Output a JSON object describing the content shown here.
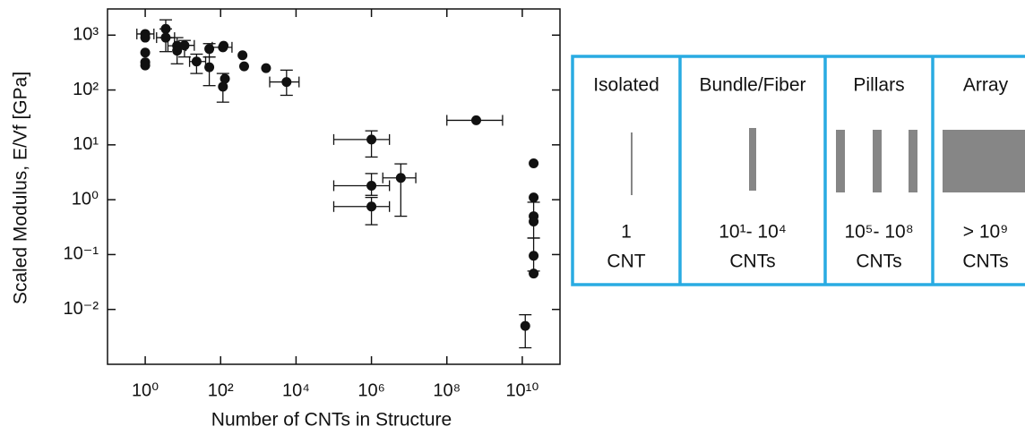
{
  "chart_data": {
    "type": "scatter",
    "xlabel": "Number of CNTs in Structure",
    "ylabel": "Scaled Modulus, E/Vf [GPa]",
    "log_x": true,
    "log_y": true,
    "color": "#111111",
    "xlim": [
      0.1,
      100000000000
    ],
    "ylim": [
      0.001,
      3000
    ],
    "xticks": [
      {
        "value": 1,
        "label": "10⁰"
      },
      {
        "value": 100,
        "label": "10²"
      },
      {
        "value": 10000,
        "label": "10⁴"
      },
      {
        "value": 1000000,
        "label": "10⁶"
      },
      {
        "value": 100000000,
        "label": "10⁸"
      },
      {
        "value": 10000000000,
        "label": "10¹⁰"
      }
    ],
    "yticks": [
      {
        "value": 0.01,
        "label": "10⁻²"
      },
      {
        "value": 0.1,
        "label": "10⁻¹"
      },
      {
        "value": 1,
        "label": "10⁰"
      },
      {
        "value": 10,
        "label": "10¹"
      },
      {
        "value": 100,
        "label": "10²"
      },
      {
        "value": 1000,
        "label": "10³"
      }
    ],
    "x": [
      1,
      1,
      1,
      1,
      1,
      3.5,
      3.5,
      7,
      7,
      11,
      23,
      50,
      50,
      115,
      120,
      115,
      130,
      380,
      420,
      1600,
      5600,
      1000000,
      1000000,
      1000000,
      6000000,
      600000000,
      12000000000,
      20000000000,
      20000000000,
      20000000000,
      20000000000,
      20000000000,
      20000000000
    ],
    "values": [
      1050,
      900,
      480,
      320,
      280,
      1300,
      900,
      640,
      520,
      650,
      330,
      560,
      260,
      600,
      640,
      115,
      160,
      430,
      270,
      250,
      140,
      12.5,
      1.8,
      0.75,
      2.5,
      28,
      0.005,
      4.6,
      1.1,
      0.5,
      0.4,
      0.095,
      0.045
    ],
    "xlow": [
      0.6,
      null,
      null,
      null,
      null,
      null,
      2,
      4,
      null,
      6,
      15,
      null,
      null,
      60,
      null,
      null,
      null,
      null,
      null,
      null,
      2000,
      100000,
      100000,
      100000,
      2000000,
      100000000,
      null,
      null,
      null,
      null,
      null,
      null,
      null
    ],
    "xhigh": [
      1.7,
      null,
      null,
      null,
      null,
      null,
      6,
      12,
      null,
      20,
      40,
      null,
      null,
      200,
      null,
      null,
      null,
      null,
      null,
      null,
      12000,
      3000000,
      3000000,
      3000000,
      15000000,
      3000000000,
      null,
      null,
      null,
      null,
      null,
      null,
      null
    ],
    "ylow": [
      null,
      null,
      null,
      null,
      null,
      900,
      500,
      300,
      null,
      400,
      200,
      400,
      120,
      null,
      null,
      60,
      null,
      null,
      null,
      null,
      80,
      6,
      1.2,
      0.35,
      0.5,
      null,
      0.002,
      null,
      null,
      0.2,
      null,
      0.05,
      null
    ],
    "yhigh": [
      null,
      null,
      null,
      null,
      null,
      1900,
      1300,
      900,
      null,
      800,
      450,
      700,
      400,
      null,
      null,
      200,
      null,
      null,
      null,
      null,
      230,
      18,
      3,
      1.1,
      4.5,
      null,
      0.008,
      null,
      null,
      0.9,
      null,
      0.2,
      null
    ]
  },
  "panel": {
    "columns": [
      {
        "title": "Isolated",
        "count": "1",
        "unit": "CNT"
      },
      {
        "title": "Bundle/Fiber",
        "count": "10¹- 10⁴",
        "unit": "CNTs"
      },
      {
        "title": "Pillars",
        "count": "10⁵- 10⁸",
        "unit": "CNTs"
      },
      {
        "title": "Array",
        "count": "> 10⁹",
        "unit": "CNTs"
      }
    ]
  }
}
